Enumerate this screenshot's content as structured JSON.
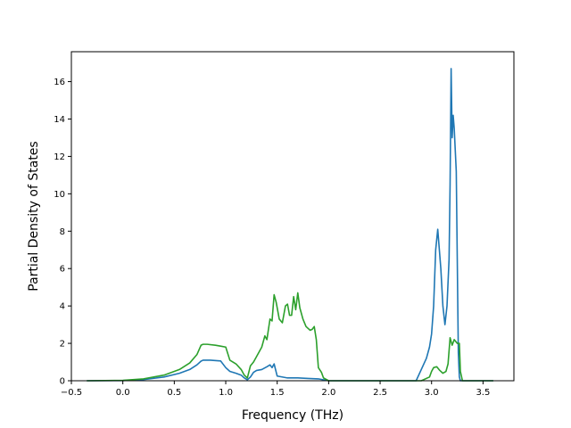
{
  "chart_data": {
    "type": "line",
    "title": "",
    "xlabel": "Frequency (THz)",
    "ylabel": "Partial Density of States",
    "xlim": [
      -0.5,
      3.8
    ],
    "ylim": [
      0,
      17.6
    ],
    "xticks": [
      -0.5,
      0.0,
      0.5,
      1.0,
      1.5,
      2.0,
      2.5,
      3.0,
      3.5
    ],
    "xtick_labels": [
      "−0.5",
      "0.0",
      "0.5",
      "1.0",
      "1.5",
      "2.0",
      "2.5",
      "3.0",
      "3.5"
    ],
    "yticks": [
      0,
      2,
      4,
      6,
      8,
      10,
      12,
      14,
      16
    ],
    "ytick_labels": [
      "0",
      "2",
      "4",
      "6",
      "8",
      "10",
      "12",
      "14",
      "16"
    ],
    "grid": false,
    "legend": "none",
    "series": [
      {
        "color": "#1f77b4",
        "x": [
          -0.35,
          0.0,
          0.2,
          0.4,
          0.55,
          0.65,
          0.72,
          0.76,
          0.78,
          0.85,
          0.95,
          1.0,
          1.04,
          1.1,
          1.15,
          1.18,
          1.21,
          1.24,
          1.27,
          1.3,
          1.35,
          1.4,
          1.43,
          1.45,
          1.47,
          1.5,
          1.6,
          1.7,
          1.8,
          1.9,
          2.0,
          2.5,
          2.85,
          2.9,
          2.95,
          2.98,
          3.0,
          3.02,
          3.04,
          3.06,
          3.09,
          3.11,
          3.13,
          3.15,
          3.17,
          3.18,
          3.19,
          3.2,
          3.21,
          3.22,
          3.24,
          3.26,
          3.27,
          3.28,
          3.3,
          3.6
        ],
        "y": [
          0,
          0.01,
          0.06,
          0.2,
          0.4,
          0.6,
          0.85,
          1.05,
          1.1,
          1.1,
          1.06,
          0.7,
          0.5,
          0.4,
          0.3,
          0.15,
          0.05,
          0.2,
          0.45,
          0.55,
          0.6,
          0.75,
          0.85,
          0.7,
          0.9,
          0.25,
          0.15,
          0.15,
          0.12,
          0.1,
          0.0,
          0.0,
          0.0,
          0.6,
          1.2,
          1.8,
          2.5,
          4.0,
          7.0,
          8.1,
          6.0,
          4.0,
          3.0,
          4.0,
          6.5,
          10.5,
          16.7,
          13.0,
          14.2,
          13.5,
          11.2,
          1.5,
          0.2,
          0.0,
          0.0,
          0.0
        ]
      },
      {
        "color": "#2ca02c",
        "x": [
          -0.35,
          0.0,
          0.2,
          0.4,
          0.55,
          0.65,
          0.72,
          0.76,
          0.78,
          0.82,
          0.9,
          0.95,
          1.0,
          1.04,
          1.1,
          1.15,
          1.18,
          1.21,
          1.24,
          1.27,
          1.3,
          1.35,
          1.38,
          1.4,
          1.43,
          1.45,
          1.47,
          1.49,
          1.52,
          1.55,
          1.58,
          1.6,
          1.62,
          1.64,
          1.66,
          1.68,
          1.7,
          1.72,
          1.75,
          1.78,
          1.8,
          1.82,
          1.84,
          1.86,
          1.88,
          1.9,
          1.93,
          1.95,
          2.0,
          2.5,
          2.9,
          2.98,
          3.0,
          3.02,
          3.05,
          3.08,
          3.11,
          3.14,
          3.16,
          3.18,
          3.2,
          3.22,
          3.25,
          3.27,
          3.28,
          3.3,
          3.6
        ],
        "y": [
          0,
          0.02,
          0.1,
          0.3,
          0.6,
          0.95,
          1.4,
          1.9,
          1.95,
          1.95,
          1.9,
          1.85,
          1.8,
          1.1,
          0.9,
          0.6,
          0.3,
          0.15,
          0.8,
          1.0,
          1.3,
          1.8,
          2.4,
          2.2,
          3.3,
          3.2,
          4.6,
          4.2,
          3.3,
          3.1,
          4.0,
          4.1,
          3.5,
          3.5,
          4.5,
          3.8,
          4.7,
          3.9,
          3.3,
          2.9,
          2.8,
          2.7,
          2.75,
          2.9,
          2.2,
          0.7,
          0.45,
          0.15,
          0.0,
          0.0,
          0.0,
          0.2,
          0.5,
          0.7,
          0.75,
          0.55,
          0.4,
          0.5,
          0.9,
          2.3,
          1.9,
          2.2,
          2.0,
          2.0,
          0.5,
          0.0,
          0.0
        ]
      }
    ]
  }
}
